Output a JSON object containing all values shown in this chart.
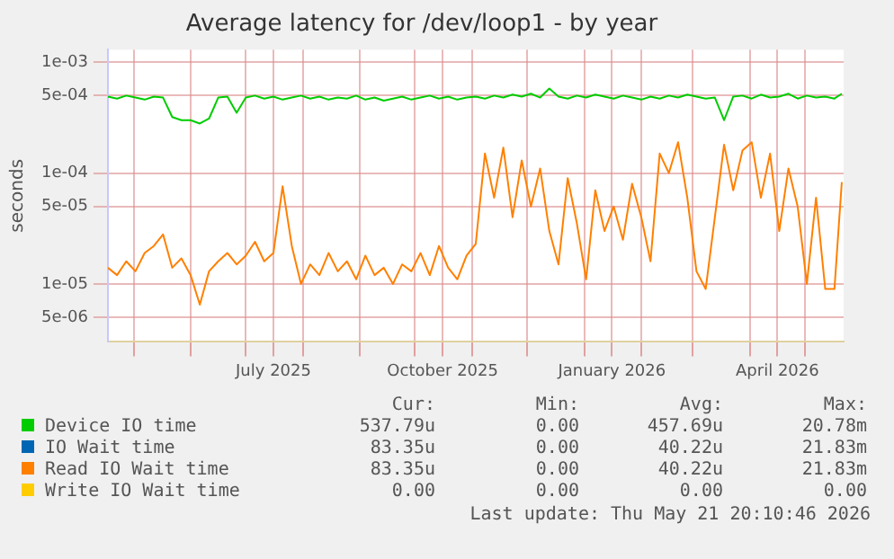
{
  "chart_data": {
    "type": "line",
    "title": "Average latency for /dev/loop1 - by year",
    "ylabel": "seconds",
    "x": [
      "2025-04-17",
      "2025-04-22",
      "2025-04-27",
      "2025-05-02",
      "2025-05-07",
      "2025-05-12",
      "2025-05-17",
      "2025-05-22",
      "2025-05-27",
      "2025-06-01",
      "2025-06-06",
      "2025-06-11",
      "2025-06-16",
      "2025-06-21",
      "2025-06-26",
      "2025-07-01",
      "2025-07-06",
      "2025-07-11",
      "2025-07-16",
      "2025-07-21",
      "2025-07-26",
      "2025-07-31",
      "2025-08-05",
      "2025-08-10",
      "2025-08-15",
      "2025-08-20",
      "2025-08-25",
      "2025-08-30",
      "2025-09-04",
      "2025-09-09",
      "2025-09-14",
      "2025-09-19",
      "2025-09-24",
      "2025-09-29",
      "2025-10-04",
      "2025-10-09",
      "2025-10-14",
      "2025-10-19",
      "2025-10-24",
      "2025-10-29",
      "2025-11-03",
      "2025-11-08",
      "2025-11-13",
      "2025-11-18",
      "2025-11-23",
      "2025-11-28",
      "2025-12-03",
      "2025-12-08",
      "2025-12-13",
      "2025-12-18",
      "2025-12-23",
      "2025-12-28",
      "2026-01-02",
      "2026-01-07",
      "2026-01-12",
      "2026-01-17",
      "2026-01-22",
      "2026-01-27",
      "2026-02-01",
      "2026-02-06",
      "2026-02-11",
      "2026-02-16",
      "2026-02-21",
      "2026-02-26",
      "2026-03-03",
      "2026-03-08",
      "2026-03-13",
      "2026-03-18",
      "2026-03-23",
      "2026-03-28",
      "2026-04-02",
      "2026-04-07",
      "2026-04-12",
      "2026-04-17",
      "2026-04-22",
      "2026-04-27",
      "2026-05-02",
      "2026-05-07",
      "2026-05-12",
      "2026-05-17",
      "2026-05-21"
    ],
    "series": [
      {
        "name": "Device IO time",
        "color": "#00cc00",
        "values": [
          0.00049,
          0.00047,
          0.0005,
          0.00048,
          0.00046,
          0.00049,
          0.00048,
          0.00032,
          0.0003,
          0.0003,
          0.00028,
          0.00031,
          0.00048,
          0.00049,
          0.00035,
          0.00048,
          0.0005,
          0.00047,
          0.00049,
          0.00046,
          0.00048,
          0.0005,
          0.00047,
          0.00049,
          0.00046,
          0.00048,
          0.00047,
          0.0005,
          0.00046,
          0.00048,
          0.00045,
          0.00047,
          0.00049,
          0.00046,
          0.00048,
          0.0005,
          0.00047,
          0.00049,
          0.00046,
          0.00048,
          0.00049,
          0.00047,
          0.0005,
          0.00048,
          0.00051,
          0.00049,
          0.00052,
          0.00048,
          0.00058,
          0.00049,
          0.00047,
          0.0005,
          0.00048,
          0.00051,
          0.00049,
          0.00047,
          0.0005,
          0.00048,
          0.00046,
          0.00049,
          0.00047,
          0.0005,
          0.00048,
          0.00051,
          0.00049,
          0.00047,
          0.00048,
          0.0003,
          0.00049,
          0.0005,
          0.00047,
          0.00051,
          0.00048,
          0.00049,
          0.00052,
          0.00047,
          0.0005,
          0.00048,
          0.00049,
          0.00047,
          0.00052
        ]
      },
      {
        "name": "IO Wait time",
        "color": "#0066b3",
        "values": [
          null,
          null,
          null,
          null,
          null,
          null,
          null,
          null,
          null,
          null,
          null,
          null,
          null,
          null,
          null,
          null,
          null,
          null,
          null,
          null,
          null,
          null,
          null,
          null,
          null,
          null,
          null,
          null,
          null,
          null,
          null,
          null,
          null,
          null,
          null,
          null,
          null,
          null,
          null,
          null,
          null,
          null,
          null,
          null,
          null,
          null,
          null,
          null,
          null,
          null,
          null,
          null,
          null,
          null,
          null,
          null,
          null,
          null,
          null,
          null,
          null,
          null,
          null,
          null,
          null,
          null,
          null,
          null,
          null,
          null,
          null,
          null,
          null,
          null,
          null,
          null,
          null,
          null,
          null,
          null,
          null
        ]
      },
      {
        "name": "Read IO Wait time",
        "color": "#ff8000",
        "values": [
          1.4e-05,
          1.2e-05,
          1.6e-05,
          1.3e-05,
          1.9e-05,
          2.2e-05,
          2.8e-05,
          1.4e-05,
          1.7e-05,
          1.2e-05,
          6.5e-06,
          1.3e-05,
          1.6e-05,
          1.9e-05,
          1.5e-05,
          1.8e-05,
          2.4e-05,
          1.6e-05,
          1.9e-05,
          7.6e-05,
          2.2e-05,
          1e-05,
          1.5e-05,
          1.2e-05,
          1.9e-05,
          1.3e-05,
          1.6e-05,
          1.1e-05,
          1.8e-05,
          1.2e-05,
          1.4e-05,
          1e-05,
          1.5e-05,
          1.3e-05,
          1.9e-05,
          1.2e-05,
          2.2e-05,
          1.4e-05,
          1.1e-05,
          1.8e-05,
          2.3e-05,
          0.00015,
          6e-05,
          0.00017,
          4e-05,
          0.00013,
          5e-05,
          0.00011,
          3e-05,
          1.5e-05,
          9e-05,
          3.5e-05,
          1.1e-05,
          7e-05,
          3e-05,
          5e-05,
          2.5e-05,
          8e-05,
          4e-05,
          1.6e-05,
          0.00015,
          0.0001,
          0.00019,
          6e-05,
          1.3e-05,
          9e-06,
          4e-05,
          0.00018,
          7e-05,
          0.00016,
          0.00019,
          6e-05,
          0.00015,
          3e-05,
          0.00011,
          5e-05,
          1e-05,
          6e-05,
          9e-06,
          9e-06,
          8.3e-05
        ]
      },
      {
        "name": "Write IO Wait time",
        "color": "#ffcc00",
        "values": [
          null,
          null,
          null,
          null,
          null,
          null,
          null,
          null,
          null,
          null,
          null,
          null,
          null,
          null,
          null,
          null,
          null,
          null,
          null,
          null,
          null,
          null,
          null,
          null,
          null,
          null,
          null,
          null,
          null,
          null,
          null,
          null,
          null,
          null,
          null,
          null,
          null,
          null,
          null,
          null,
          null,
          null,
          null,
          null,
          null,
          null,
          null,
          null,
          null,
          null,
          null,
          null,
          null,
          null,
          null,
          null,
          null,
          null,
          null,
          null,
          null,
          null,
          null,
          null,
          null,
          null,
          null,
          null,
          null,
          null,
          null,
          null,
          null,
          null,
          null,
          null,
          null,
          null,
          null,
          null,
          null
        ]
      }
    ],
    "xlim": [
      "2025-04-17",
      "2026-05-22"
    ],
    "xticks": [
      {
        "value": "2025-05-01",
        "label": null
      },
      {
        "value": "2025-06-01",
        "label": null
      },
      {
        "value": "2025-07-01",
        "label": null
      },
      {
        "value": "2025-07-16",
        "label": "July 2025"
      },
      {
        "value": "2025-08-01",
        "label": null
      },
      {
        "value": "2025-09-01",
        "label": null
      },
      {
        "value": "2025-10-01",
        "label": null
      },
      {
        "value": "2025-10-16",
        "label": "October 2025"
      },
      {
        "value": "2025-11-01",
        "label": null
      },
      {
        "value": "2025-12-01",
        "label": null
      },
      {
        "value": "2026-01-01",
        "label": null
      },
      {
        "value": "2026-01-16",
        "label": "January 2026"
      },
      {
        "value": "2026-02-01",
        "label": null
      },
      {
        "value": "2026-03-01",
        "label": null
      },
      {
        "value": "2026-04-01",
        "label": null
      },
      {
        "value": "2026-04-16",
        "label": "April 2026"
      },
      {
        "value": "2026-05-01",
        "label": null
      }
    ],
    "ylim": [
      3e-06,
      0.0013
    ],
    "yticks": [
      {
        "value": 0.001,
        "label": "1e-03"
      },
      {
        "value": 0.0005,
        "label": "5e-04"
      },
      {
        "value": 0.0001,
        "label": "1e-04"
      },
      {
        "value": 5e-05,
        "label": "5e-05"
      },
      {
        "value": 1e-05,
        "label": "1e-05"
      },
      {
        "value": 5e-06,
        "label": "5e-06"
      }
    ],
    "log": "y",
    "grid": true,
    "legend": "bottom",
    "marker": "none",
    "line_style": "solid",
    "annotations": [
      "Cur:",
      "Min:",
      "Avg:",
      "Max:",
      "537.79u",
      "0.00",
      "457.69u",
      "20.78m",
      "83.35u",
      "0.00",
      "40.22u",
      "21.83m",
      "83.35u",
      "0.00",
      "40.22u",
      "21.83m",
      "0.00",
      "0.00",
      "0.00",
      "0.00",
      "Last update: Thu May 21 20:10:46 2026"
    ]
  }
}
